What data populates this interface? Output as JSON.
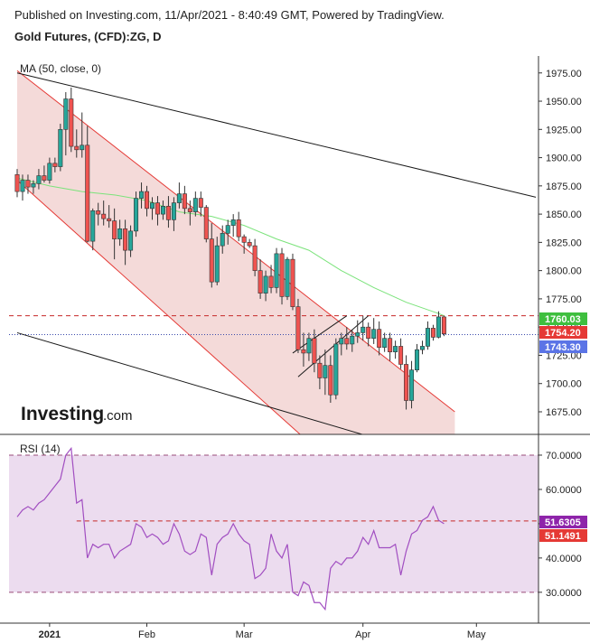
{
  "header": {
    "published": "Published on Investing.com, 11/Apr/2021 - 8:40:49 GMT, Powered by TradingView.",
    "instrument": "Gold Futures, (CFD):ZG, D"
  },
  "colors": {
    "up": "#26a69a",
    "down": "#ef5350",
    "channel_fill": "#f2d4d2",
    "rsi_fill": "#ecdcef",
    "ma": "#7be37b",
    "rsi_line": "#a14ec1"
  },
  "logo": {
    "brand": "Investing",
    "suffix": ".com"
  },
  "chart_data": [
    {
      "type": "candlestick",
      "indicator_label": "MA (50, close, 0)",
      "ylim": [
        1655,
        1990
      ],
      "y_ticks": [
        "1975.00",
        "1950.00",
        "1925.00",
        "1900.00",
        "1875.00",
        "1850.00",
        "1825.00",
        "1800.00",
        "1775.00",
        "1750.00",
        "1725.00",
        "1700.00",
        "1675.00"
      ],
      "x_labels": [
        {
          "label": "2021",
          "index": 6
        },
        {
          "label": "Feb",
          "index": 24
        },
        {
          "label": "Mar",
          "index": 42
        },
        {
          "label": "Apr",
          "index": 64
        },
        {
          "label": "May",
          "index": 85
        }
      ],
      "price_badges": [
        {
          "value": "1760.03",
          "color": "#3fbf3f"
        },
        {
          "value": "1754.20",
          "color": "#e53935"
        },
        {
          "value": "1743.30",
          "color": "#5b74e6"
        }
      ],
      "horizontal_levels": [
        {
          "value": 1760.03,
          "style": "dashed",
          "color": "#c62828"
        },
        {
          "value": 1743.3,
          "style": "dotted",
          "color": "#3949ab"
        }
      ],
      "candles": [
        [
          1885,
          1890,
          1865,
          1870
        ],
        [
          1870,
          1885,
          1862,
          1880
        ],
        [
          1880,
          1885,
          1868,
          1874
        ],
        [
          1874,
          1880,
          1868,
          1877
        ],
        [
          1877,
          1890,
          1872,
          1884
        ],
        [
          1884,
          1893,
          1878,
          1880
        ],
        [
          1880,
          1900,
          1877,
          1895
        ],
        [
          1895,
          1900,
          1887,
          1892
        ],
        [
          1892,
          1930,
          1888,
          1925
        ],
        [
          1925,
          1958,
          1902,
          1952
        ],
        [
          1952,
          1962,
          1905,
          1910
        ],
        [
          1910,
          1925,
          1900,
          1907
        ],
        [
          1907,
          1940,
          1900,
          1911
        ],
        [
          1911,
          1928,
          1825,
          1826
        ],
        [
          1826,
          1855,
          1818,
          1853
        ],
        [
          1853,
          1860,
          1840,
          1850
        ],
        [
          1850,
          1862,
          1840,
          1846
        ],
        [
          1846,
          1858,
          1838,
          1844
        ],
        [
          1844,
          1855,
          1810,
          1828
        ],
        [
          1828,
          1845,
          1822,
          1837
        ],
        [
          1837,
          1845,
          1805,
          1818
        ],
        [
          1818,
          1840,
          1812,
          1835
        ],
        [
          1835,
          1870,
          1830,
          1864
        ],
        [
          1864,
          1878,
          1855,
          1870
        ],
        [
          1870,
          1875,
          1848,
          1855
        ],
        [
          1855,
          1865,
          1845,
          1860
        ],
        [
          1860,
          1866,
          1840,
          1850
        ],
        [
          1850,
          1862,
          1845,
          1857
        ],
        [
          1857,
          1866,
          1838,
          1845
        ],
        [
          1845,
          1865,
          1835,
          1860
        ],
        [
          1860,
          1878,
          1855,
          1868
        ],
        [
          1868,
          1875,
          1850,
          1855
        ],
        [
          1855,
          1862,
          1840,
          1852
        ],
        [
          1852,
          1870,
          1848,
          1864
        ],
        [
          1864,
          1870,
          1848,
          1856
        ],
        [
          1856,
          1858,
          1825,
          1828
        ],
        [
          1828,
          1842,
          1785,
          1790
        ],
        [
          1790,
          1830,
          1787,
          1822
        ],
        [
          1822,
          1840,
          1815,
          1833
        ],
        [
          1833,
          1845,
          1823,
          1840
        ],
        [
          1840,
          1850,
          1830,
          1845
        ],
        [
          1845,
          1852,
          1826,
          1830
        ],
        [
          1830,
          1832,
          1815,
          1825
        ],
        [
          1825,
          1828,
          1820,
          1822
        ],
        [
          1822,
          1828,
          1795,
          1800
        ],
        [
          1800,
          1810,
          1775,
          1780
        ],
        [
          1780,
          1800,
          1773,
          1795
        ],
        [
          1795,
          1805,
          1780,
          1785
        ],
        [
          1785,
          1820,
          1780,
          1815
        ],
        [
          1815,
          1820,
          1770,
          1777
        ],
        [
          1777,
          1812,
          1774,
          1810
        ],
        [
          1810,
          1815,
          1765,
          1768
        ],
        [
          1768,
          1775,
          1727,
          1730
        ],
        [
          1730,
          1745,
          1715,
          1727
        ],
        [
          1727,
          1745,
          1720,
          1740
        ],
        [
          1740,
          1748,
          1710,
          1718
        ],
        [
          1718,
          1725,
          1695,
          1705
        ],
        [
          1705,
          1730,
          1690,
          1716
        ],
        [
          1716,
          1725,
          1683,
          1690
        ],
        [
          1690,
          1740,
          1686,
          1735
        ],
        [
          1735,
          1745,
          1725,
          1740
        ],
        [
          1740,
          1750,
          1730,
          1735
        ],
        [
          1735,
          1748,
          1728,
          1742
        ],
        [
          1742,
          1756,
          1736,
          1745
        ],
        [
          1745,
          1760,
          1738,
          1750
        ],
        [
          1750,
          1754,
          1733,
          1740
        ],
        [
          1740,
          1758,
          1735,
          1748
        ],
        [
          1748,
          1755,
          1725,
          1732
        ],
        [
          1732,
          1745,
          1728,
          1740
        ],
        [
          1740,
          1745,
          1720,
          1728
        ],
        [
          1728,
          1738,
          1722,
          1733
        ],
        [
          1733,
          1740,
          1713,
          1717
        ],
        [
          1717,
          1725,
          1677,
          1685
        ],
        [
          1685,
          1720,
          1678,
          1712
        ],
        [
          1712,
          1735,
          1710,
          1730
        ],
        [
          1730,
          1738,
          1726,
          1733
        ],
        [
          1733,
          1755,
          1730,
          1749
        ],
        [
          1749,
          1752,
          1738,
          1741
        ],
        [
          1741,
          1764,
          1740,
          1759
        ],
        [
          1759,
          1760,
          1742,
          1744
        ]
      ],
      "ma50": [
        [
          0,
          1882
        ],
        [
          6,
          1875
        ],
        [
          12,
          1870
        ],
        [
          18,
          1867
        ],
        [
          24,
          1862
        ],
        [
          30,
          1852
        ],
        [
          36,
          1848
        ],
        [
          42,
          1840
        ],
        [
          48,
          1828
        ],
        [
          54,
          1818
        ],
        [
          60,
          1800
        ],
        [
          66,
          1785
        ],
        [
          72,
          1772
        ],
        [
          78,
          1762
        ],
        [
          79,
          1760.03
        ]
      ],
      "trendlines": [
        {
          "name": "channel-upper",
          "from": [
            0,
            1977
          ],
          "to": [
            81,
            1675
          ],
          "color": "#e53935"
        },
        {
          "name": "channel-lower",
          "from": [
            0,
            1880
          ],
          "to": [
            54,
            1648
          ],
          "color": "#e53935"
        },
        {
          "name": "long-resistance",
          "from": [
            0,
            1975
          ],
          "to": [
            96,
            1865
          ],
          "color": "#1a1a1a"
        },
        {
          "name": "long-support",
          "from": [
            0,
            1745
          ],
          "to": [
            66,
            1652
          ],
          "color": "#1a1a1a"
        },
        {
          "name": "wedge-lower",
          "from": [
            52,
            1706
          ],
          "to": [
            65,
            1760
          ],
          "color": "#1a1a1a"
        },
        {
          "name": "wedge-upper",
          "from": [
            51,
            1727
          ],
          "to": [
            61,
            1760
          ],
          "color": "#1a1a1a"
        }
      ]
    },
    {
      "type": "line",
      "indicator_label": "RSI (14)",
      "ylim": [
        21,
        75
      ],
      "y_ticks": [
        "70.0000",
        "60.0000",
        "50.0000",
        "40.0000",
        "30.0000"
      ],
      "levels": [
        {
          "value": 70,
          "style": "dashed",
          "color": "#9a4d7a"
        },
        {
          "value": 30,
          "style": "dashed",
          "color": "#9a4d7a"
        },
        {
          "value": 50.8,
          "style": "dashed",
          "color": "#c62828"
        }
      ],
      "value_badges": [
        {
          "value": "51.6305",
          "color": "#8e24aa"
        },
        {
          "value": "51.1491",
          "color": "#e53935"
        }
      ],
      "values": [
        52,
        54,
        55,
        54,
        56,
        57,
        59,
        61,
        63,
        70,
        72,
        56,
        57,
        40,
        44,
        43,
        44,
        44,
        40,
        42,
        43,
        44,
        50,
        49,
        46,
        47,
        46,
        44,
        45,
        50,
        47,
        42,
        41,
        42,
        47,
        46,
        35,
        44,
        46,
        47,
        50,
        47,
        45,
        44,
        34,
        35,
        37,
        47,
        42,
        40,
        44,
        30,
        29,
        33,
        32,
        27,
        27,
        25,
        37,
        39,
        38,
        40,
        40,
        42,
        46,
        44,
        48,
        43,
        43,
        43,
        44,
        35,
        42,
        47,
        48,
        51,
        52,
        55,
        51,
        50
      ]
    }
  ]
}
